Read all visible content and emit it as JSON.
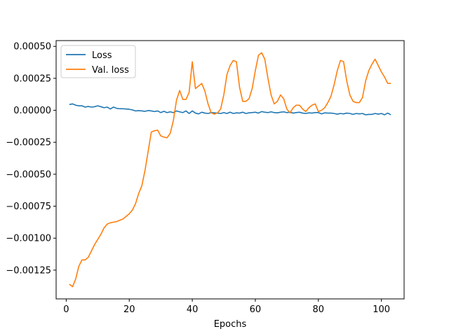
{
  "chart_data": {
    "type": "line",
    "title": "",
    "xlabel": "Epochs",
    "ylabel": "",
    "xlim": [
      -3.2,
      107.2
    ],
    "ylim": [
      -0.001475,
      0.000545
    ],
    "x_ticks": [
      0,
      20,
      40,
      60,
      80,
      100
    ],
    "y_ticks": [
      0.0005,
      0.00025,
      0.0,
      -0.00025,
      -0.0005,
      -0.00075,
      -0.001,
      -0.00125
    ],
    "x_tick_labels": [
      "0",
      "20",
      "40",
      "60",
      "80",
      "100"
    ],
    "y_tick_labels": [
      "0.00050",
      "0.00025",
      "0.00000",
      "−0.00025",
      "−0.00050",
      "−0.00075",
      "−0.00100",
      "−0.00125"
    ],
    "grid": false,
    "legend_position": "upper-left",
    "colors": {
      "loss": "#1f77b4",
      "val_loss": "#ff7f0e"
    },
    "series": [
      {
        "name": "Loss",
        "color": "#1f77b4",
        "x": [
          1,
          2,
          3,
          4,
          5,
          6,
          7,
          8,
          9,
          10,
          11,
          12,
          13,
          14,
          15,
          16,
          17,
          18,
          19,
          20,
          21,
          22,
          23,
          24,
          25,
          26,
          27,
          28,
          29,
          30,
          31,
          32,
          33,
          34,
          35,
          36,
          37,
          38,
          39,
          40,
          41,
          42,
          43,
          44,
          45,
          46,
          47,
          48,
          49,
          50,
          51,
          52,
          53,
          54,
          55,
          56,
          57,
          58,
          59,
          60,
          61,
          62,
          63,
          64,
          65,
          66,
          67,
          68,
          69,
          70,
          71,
          72,
          73,
          74,
          75,
          76,
          77,
          78,
          79,
          80,
          81,
          82,
          83,
          84,
          85,
          86,
          87,
          88,
          89,
          90,
          91,
          92,
          93,
          94,
          95,
          96,
          97,
          98,
          99,
          100,
          101,
          102,
          103
        ],
        "values": [
          4.5e-05,
          5e-05,
          4e-05,
          3.5e-05,
          3.5e-05,
          2.5e-05,
          3e-05,
          2.5e-05,
          2.8e-05,
          3.5e-05,
          2.8e-05,
          2e-05,
          2.5e-05,
          1e-05,
          2.5e-05,
          1.5e-05,
          1.2e-05,
          1.2e-05,
          1e-05,
          8e-06,
          3e-06,
          -5e-06,
          -3e-06,
          -5e-06,
          -8e-06,
          -2e-06,
          -5e-06,
          -1e-05,
          -5e-06,
          -1.8e-05,
          -8e-06,
          -1.8e-05,
          -1.2e-05,
          -1.8e-05,
          -5e-06,
          -1.2e-05,
          -1.8e-05,
          -5e-06,
          -2.5e-05,
          -5e-06,
          -2.2e-05,
          -2.8e-05,
          -1.5e-05,
          -2.2e-05,
          -2.5e-05,
          -1.8e-05,
          -2e-05,
          -2.2e-05,
          -2.5e-05,
          -1.8e-05,
          -2.5e-05,
          -1.5e-05,
          -2.5e-05,
          -2e-05,
          -2.2e-05,
          -1.5e-05,
          -2.5e-05,
          -2e-05,
          -1.8e-05,
          -1.5e-05,
          -2.2e-05,
          -1e-05,
          -1.5e-05,
          -1.8e-05,
          -1.2e-05,
          -1.8e-05,
          -2e-05,
          -1.5e-05,
          -1.2e-05,
          -1.8e-05,
          -1.5e-05,
          -2.2e-05,
          -1.8e-05,
          -1.5e-05,
          -2.2e-05,
          -2.5e-05,
          -2e-05,
          -2.2e-05,
          -1.8e-05,
          -1.8e-05,
          -2.8e-05,
          -2e-05,
          -2.2e-05,
          -2.2e-05,
          -2.5e-05,
          -3e-05,
          -2.5e-05,
          -2.8e-05,
          -2.2e-05,
          -2.5e-05,
          -3.2e-05,
          -2.5e-05,
          -2.8e-05,
          -2.5e-05,
          -3.5e-05,
          -3.2e-05,
          -3.2e-05,
          -2.5e-05,
          -3e-05,
          -2.5e-05,
          -3.5e-05,
          -2.2e-05,
          -3.5e-05
        ]
      },
      {
        "name": "Val. loss",
        "color": "#ff7f0e",
        "x": [
          1,
          2,
          3,
          4,
          5,
          6,
          7,
          8,
          9,
          10,
          11,
          12,
          13,
          14,
          15,
          16,
          17,
          18,
          19,
          20,
          21,
          22,
          23,
          24,
          25,
          26,
          27,
          28,
          29,
          30,
          31,
          32,
          33,
          34,
          35,
          36,
          37,
          38,
          39,
          40,
          41,
          42,
          43,
          44,
          45,
          46,
          47,
          48,
          49,
          50,
          51,
          52,
          53,
          54,
          55,
          56,
          57,
          58,
          59,
          60,
          61,
          62,
          63,
          64,
          65,
          66,
          67,
          68,
          69,
          70,
          71,
          72,
          73,
          74,
          75,
          76,
          77,
          78,
          79,
          80,
          81,
          82,
          83,
          84,
          85,
          86,
          87,
          88,
          89,
          90,
          91,
          92,
          93,
          94,
          95,
          96,
          97,
          98,
          99,
          100,
          101,
          102,
          103
        ],
        "values": [
          -0.00136,
          -0.00138,
          -0.00132,
          -0.00122,
          -0.00117,
          -0.00117,
          -0.00115,
          -0.0011,
          -0.00105,
          -0.00101,
          -0.00097,
          -0.00092,
          -0.00089,
          -0.00088,
          -0.000875,
          -0.00087,
          -0.00086,
          -0.00085,
          -0.00083,
          -0.00081,
          -0.00078,
          -0.00073,
          -0.00065,
          -0.00059,
          -0.00047,
          -0.00032,
          -0.00017,
          -0.00016,
          -0.000155,
          -0.0002,
          -0.00021,
          -0.000215,
          -0.00018,
          -8e-05,
          8e-05,
          0.000155,
          8.5e-05,
          8.5e-05,
          0.00014,
          0.00038,
          0.00017,
          0.00019,
          0.00021,
          0.00015,
          5e-05,
          -2e-05,
          -3e-05,
          -2e-05,
          1e-05,
          0.00012,
          0.00028,
          0.00035,
          0.00039,
          0.00038,
          0.00018,
          7e-05,
          7e-05,
          9e-05,
          0.00017,
          0.00031,
          0.00043,
          0.00045,
          0.0004,
          0.00025,
          0.00012,
          5e-05,
          7e-05,
          0.00012,
          9e-05,
          1e-05,
          -2e-05,
          2e-05,
          4e-05,
          4e-05,
          1e-05,
          -1e-05,
          2e-05,
          4e-05,
          5e-05,
          -1e-05,
          0.0,
          2e-05,
          6e-05,
          0.00011,
          0.0002,
          0.00031,
          0.00039,
          0.00038,
          0.00023,
          0.00012,
          7e-05,
          6e-05,
          6e-05,
          0.0001,
          0.00023,
          0.00031,
          0.00036,
          0.0004,
          0.00035,
          0.0003,
          0.00026,
          0.00021,
          0.00021
        ]
      }
    ]
  }
}
